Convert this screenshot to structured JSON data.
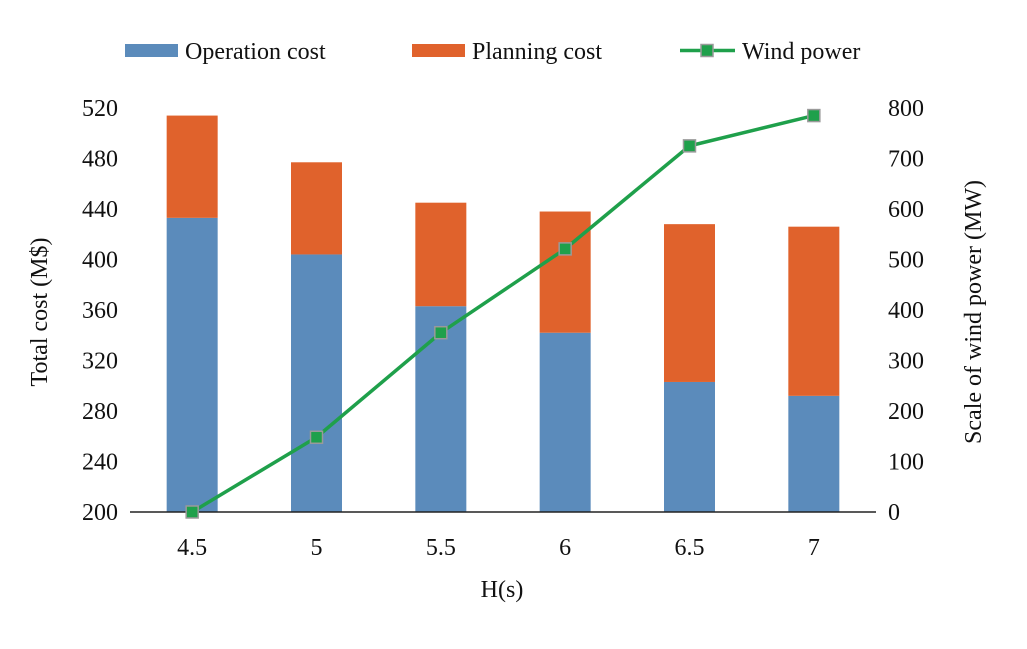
{
  "chart_data": {
    "type": "bar",
    "stacked": true,
    "title": "",
    "categories": [
      "4.5",
      "5",
      "5.5",
      "6",
      "6.5",
      "7"
    ],
    "xlabel": "H(s)",
    "ylabel": "Total cost (M$)",
    "y2label": "Scale of wind power (MW)",
    "ylim": [
      200,
      520
    ],
    "y_ticks": [
      200,
      240,
      280,
      320,
      360,
      400,
      440,
      480,
      520
    ],
    "y2lim": [
      0,
      800
    ],
    "y2_ticks": [
      0,
      100,
      200,
      300,
      400,
      500,
      600,
      700,
      800
    ],
    "grid": false,
    "legend": "top",
    "series": [
      {
        "name": "Operation cost",
        "kind": "bar",
        "axis": "left",
        "color": "#5b8bbb",
        "values": [
          433,
          404,
          363,
          342,
          303,
          292
        ]
      },
      {
        "name": "Planning cost",
        "kind": "bar",
        "axis": "left",
        "color": "#e0622c",
        "values": [
          81,
          73,
          82,
          96,
          125,
          134
        ]
      },
      {
        "name": "Wind power",
        "kind": "line",
        "axis": "right",
        "color": "#1fa04b",
        "marker": "square",
        "values": [
          0,
          148,
          355,
          521,
          725,
          785
        ]
      }
    ]
  }
}
